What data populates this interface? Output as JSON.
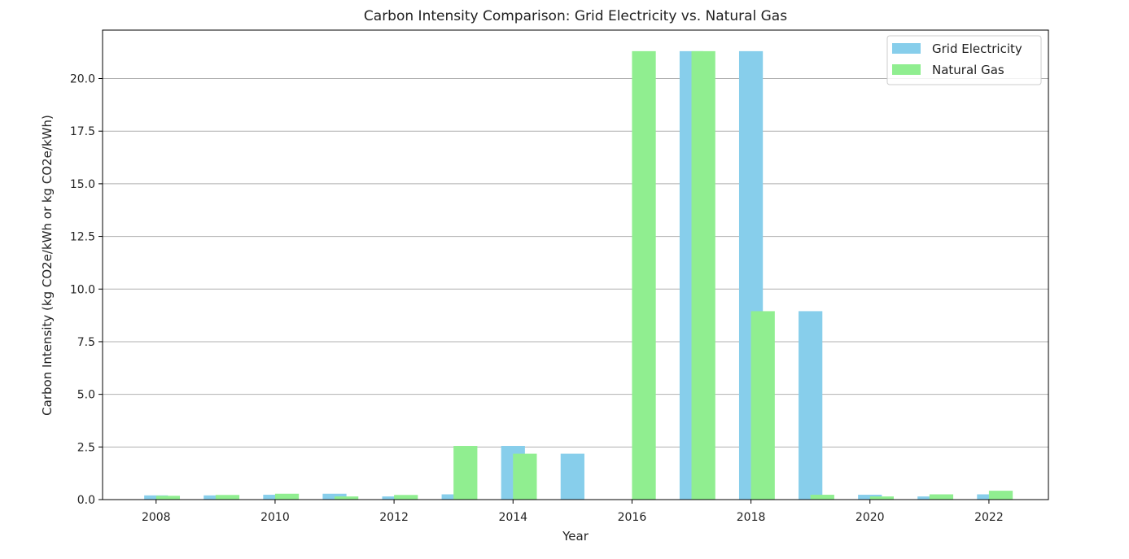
{
  "chart_data": {
    "type": "bar",
    "title": "Carbon Intensity Comparison: Grid Electricity vs. Natural Gas",
    "xlabel": "Year",
    "ylabel": "Carbon Intensity (kg CO2e/kWh or kg CO2e/kWh)",
    "x": [
      2008,
      2009,
      2010,
      2011,
      2012,
      2013,
      2014,
      2015,
      2016,
      2017,
      2018,
      2019,
      2020,
      2021,
      2022
    ],
    "xlim": [
      2007.1,
      2023.0
    ],
    "ylim": [
      0,
      22.3
    ],
    "x_ticks": [
      2008,
      2010,
      2012,
      2014,
      2016,
      2018,
      2020,
      2022
    ],
    "y_ticks": [
      0.0,
      2.5,
      5.0,
      7.5,
      10.0,
      12.5,
      15.0,
      17.5,
      20.0
    ],
    "grid": "horizontal",
    "legend_position": "top-right",
    "series": [
      {
        "name": "Grid Electricity",
        "color": "#87ceeb",
        "bar_offset": 0.0,
        "values": [
          0.2,
          0.2,
          0.23,
          0.28,
          0.15,
          0.25,
          2.55,
          2.18,
          0.0,
          21.3,
          21.3,
          8.95,
          0.23,
          0.15,
          0.25
        ]
      },
      {
        "name": "Natural Gas",
        "color": "#90ee90",
        "bar_offset": 0.2,
        "values": [
          0.18,
          0.22,
          0.28,
          0.15,
          0.22,
          2.55,
          2.18,
          0.0,
          21.3,
          21.3,
          8.95,
          0.23,
          0.15,
          0.25,
          0.42
        ]
      }
    ],
    "bar_width": 0.4
  }
}
